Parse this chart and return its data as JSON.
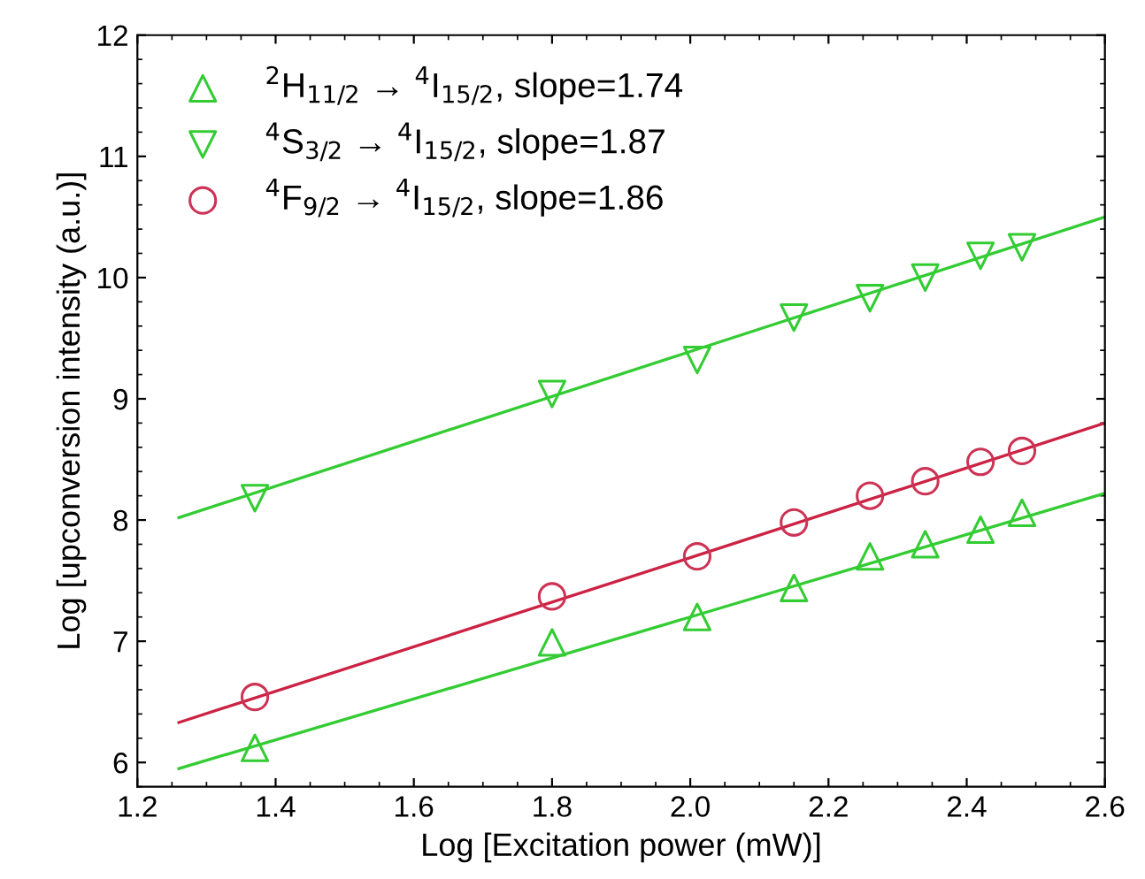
{
  "chart_data": {
    "type": "scatter",
    "xlabel": "Log [Excitation power (mW)]",
    "ylabel": "Log [upconversion intensity (a.u.)]",
    "xlim": [
      1.2,
      2.6
    ],
    "xticks": [
      1.2,
      1.4,
      1.6,
      1.8,
      {
        "value": 2,
        "label": "2.0"
      },
      2.2,
      2.4,
      2.6
    ],
    "ylim": [
      5.8,
      12
    ],
    "yticks": [
      6,
      7,
      8,
      9,
      10,
      11,
      12
    ],
    "grid": false,
    "legend": "top left",
    "x": [
      1.37,
      1.8,
      2.01,
      2.15,
      2.26,
      2.34,
      2.42,
      2.48
    ],
    "series": [
      {
        "name": "$^{2}$H$_{11/2}$ → $^{4}$I$_{15/2}$, slope=1.74",
        "color": "#33cc33",
        "marker": "triangle",
        "values": [
          6.12,
          6.99,
          7.2,
          7.44,
          7.7,
          7.8,
          7.92,
          8.06
        ]
      },
      {
        "name": "$^{4}$S$_{3/2}$ → $^{4}$I$_{15/2}$, slope=1.87",
        "color": "#33cc33",
        "marker": "triangle_down",
        "values": [
          8.18,
          9.04,
          9.32,
          9.67,
          9.83,
          10.0,
          10.18,
          10.25
        ]
      },
      {
        "name": "$^{4}$F$_{9/2}$ → $^{4}$I$_{15/2}$, slope=1.86",
        "color": "#cc3355",
        "marker": "circle",
        "values": [
          6.54,
          7.37,
          7.7,
          7.98,
          8.2,
          8.32,
          8.48,
          8.57
        ]
      },
      {
        "type": "line",
        "color": "#33cc33",
        "marker": "none",
        "x": [
          1.26,
          2.0,
          2.6
        ],
        "values": [
          5.95,
          7.2,
          8.22
        ]
      },
      {
        "type": "line",
        "color": "#33cc33",
        "marker": "none",
        "x": [
          1.26,
          2.0,
          2.6
        ],
        "values": [
          8.02,
          9.39,
          10.5
        ]
      },
      {
        "type": "line",
        "color": "#cc2244",
        "marker": "none",
        "x": [
          1.26,
          2.0,
          2.6
        ],
        "values": [
          6.33,
          7.69,
          8.8
        ]
      }
    ]
  }
}
